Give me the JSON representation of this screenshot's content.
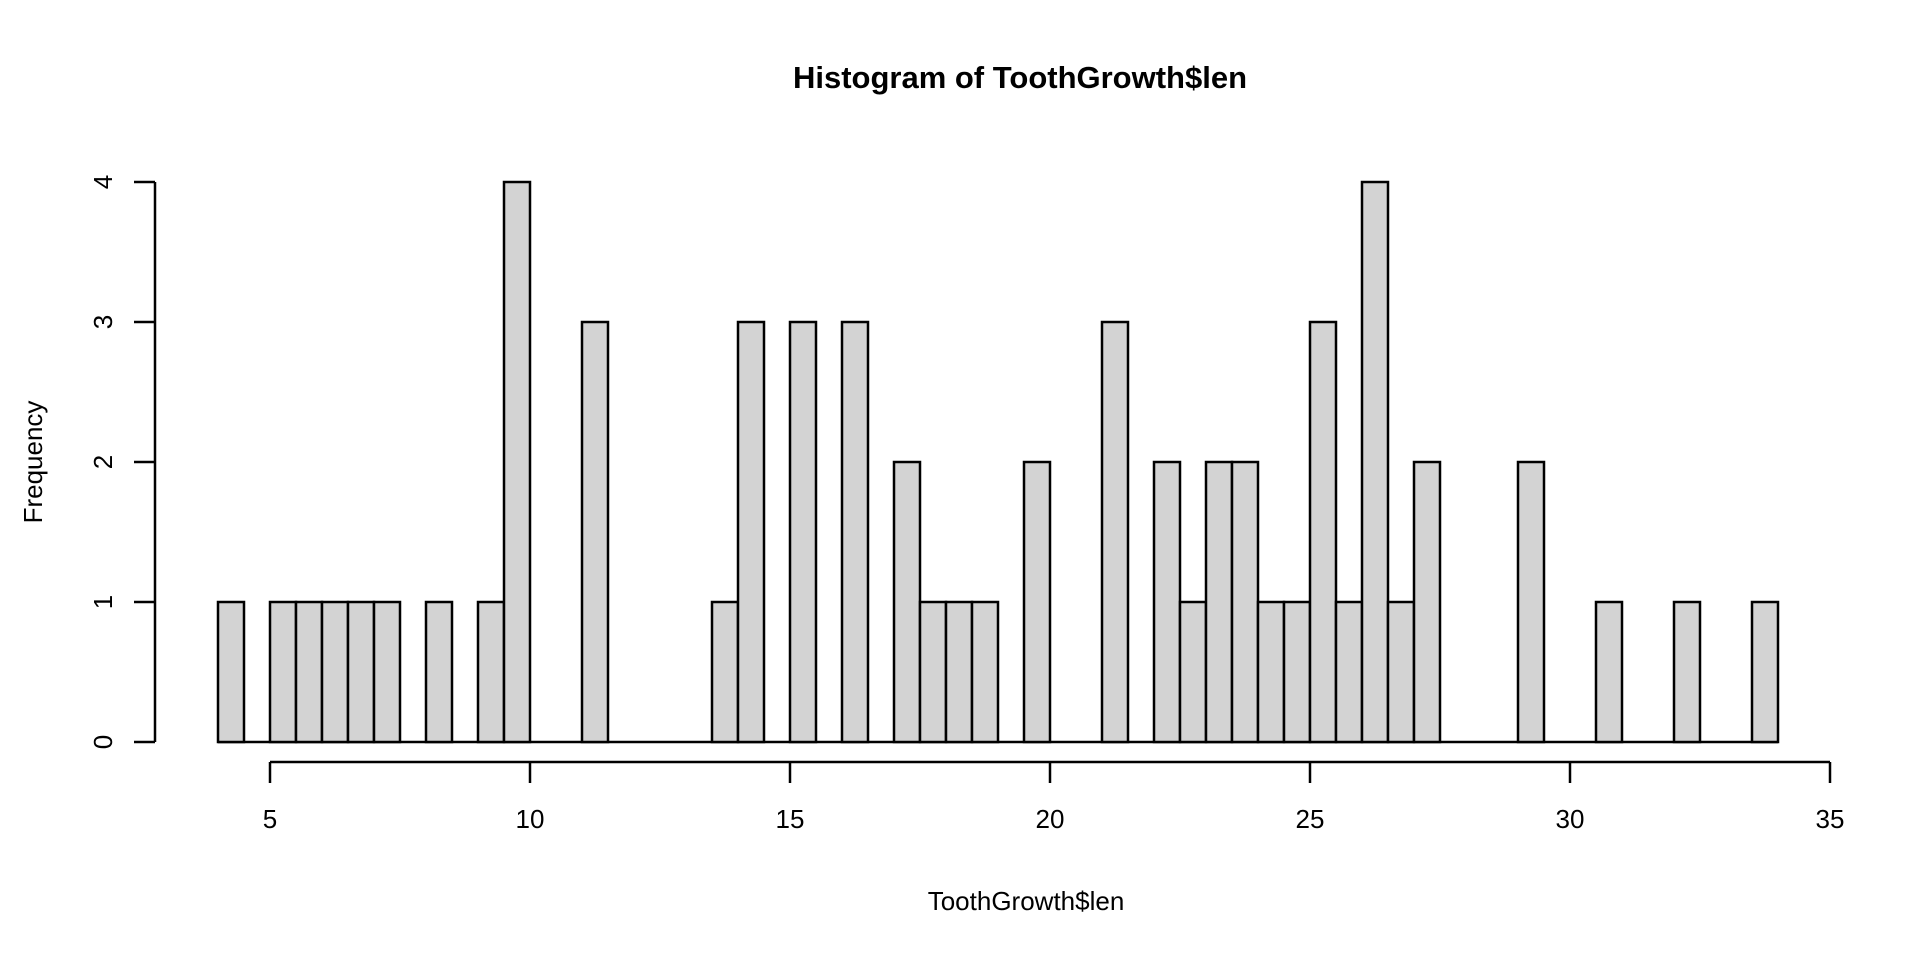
{
  "chart_data": {
    "type": "bar",
    "subtype": "histogram",
    "title": "Histogram of ToothGrowth$len",
    "xlabel": "ToothGrowth$len",
    "ylabel": "Frequency",
    "bin_start": 4.0,
    "bin_width": 0.5,
    "counts": [
      1,
      0,
      1,
      1,
      1,
      1,
      1,
      0,
      1,
      0,
      1,
      4,
      0,
      0,
      3,
      0,
      0,
      0,
      0,
      1,
      3,
      0,
      3,
      0,
      3,
      0,
      2,
      1,
      1,
      1,
      0,
      2,
      0,
      0,
      3,
      0,
      2,
      1,
      2,
      2,
      1,
      1,
      3,
      1,
      4,
      1,
      2,
      0,
      0,
      0,
      2,
      0,
      0,
      1,
      0,
      0,
      1,
      0,
      0,
      1
    ],
    "x_ticks": [
      5,
      10,
      15,
      20,
      25,
      30,
      35
    ],
    "y_ticks": [
      0,
      1,
      2,
      3,
      4
    ],
    "xlim": [
      4,
      35
    ],
    "ylim": [
      0,
      4
    ],
    "grid": false,
    "legend": "none",
    "colors": {
      "bar_fill": "#D3D3D3",
      "bar_border": "#000000",
      "axis": "#000000",
      "text": "#000000",
      "background": "#FFFFFF"
    }
  }
}
